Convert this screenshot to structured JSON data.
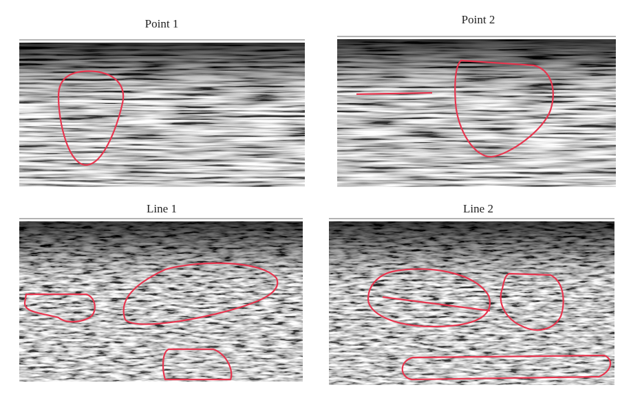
{
  "panels": [
    {
      "title": "Point 1"
    },
    {
      "title": "Point 2"
    },
    {
      "title": "Line 1"
    },
    {
      "title": "Line 2"
    }
  ]
}
